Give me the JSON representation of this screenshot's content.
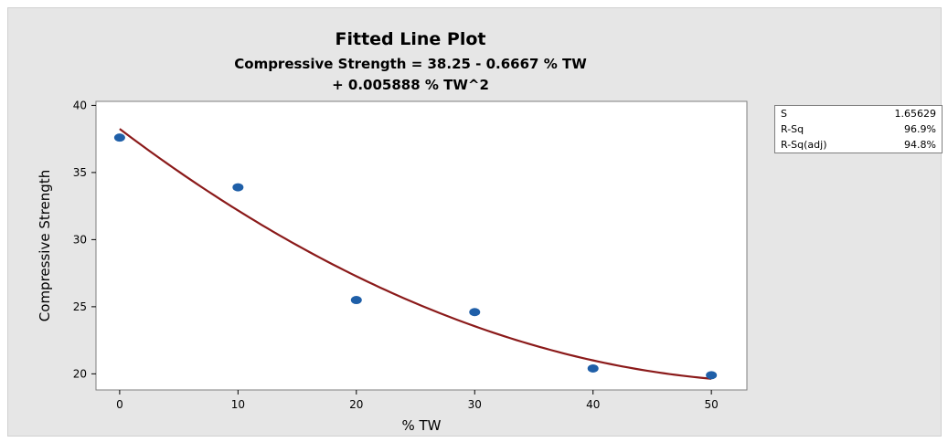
{
  "chart_data": {
    "type": "scatter",
    "title": "Fitted Line Plot",
    "subtitle_lines": [
      "Compressive Strength = 38.25 - 0.6667 % TW",
      "+ 0.005888 % TW^2"
    ],
    "xlabel": "% TW",
    "ylabel": "Compressive Strength",
    "xlim": [
      -2,
      53
    ],
    "ylim": [
      18.8,
      40.3
    ],
    "xticks": [
      0,
      10,
      20,
      30,
      40,
      50
    ],
    "yticks": [
      20,
      25,
      30,
      35,
      40
    ],
    "grid": false,
    "points": [
      {
        "x": 0,
        "y": 37.6
      },
      {
        "x": 10,
        "y": 33.9
      },
      {
        "x": 20,
        "y": 25.5
      },
      {
        "x": 30,
        "y": 24.6
      },
      {
        "x": 40,
        "y": 20.4
      },
      {
        "x": 50,
        "y": 19.9
      }
    ],
    "fit": {
      "a": 38.25,
      "b": -0.6667,
      "c": 0.005888,
      "x_range": [
        0,
        50
      ]
    },
    "colors": {
      "point": "#1f5fa8",
      "fit_line": "#8b1a1a",
      "plot_bg": "#ffffff",
      "figure_bg": "#e6e6e6"
    },
    "stats": [
      {
        "label": "S",
        "value": "1.65629"
      },
      {
        "label": "R-Sq",
        "value": "96.9%"
      },
      {
        "label": "R-Sq(adj)",
        "value": "94.8%"
      }
    ]
  }
}
